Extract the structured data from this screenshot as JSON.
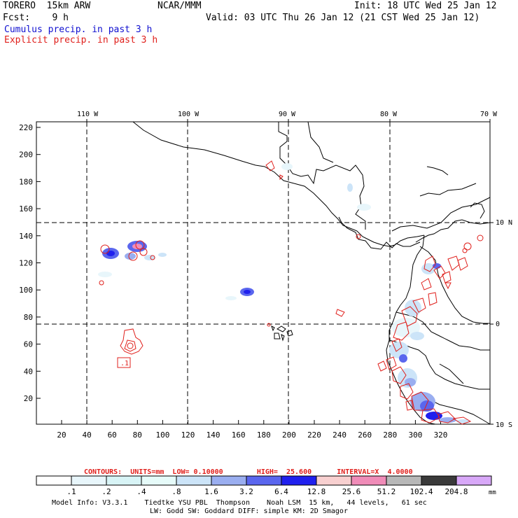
{
  "header": {
    "model": "TORERO  15km ARW",
    "org": "NCAR/MMM",
    "init": "Init: 18 UTC Wed 25 Jan 12",
    "fcst": "Fcst:    9 h",
    "valid": "Valid: 03 UTC Thu 26 Jan 12 (21 CST Wed 25 Jan 12)",
    "field1": "Cumulus precip. in past 3 h",
    "field2": "Explicit precip. in past 3 h"
  },
  "map": {
    "lon_labels": [
      "110 W",
      "100 W",
      "90 W",
      "80 W",
      "70 W"
    ],
    "lat_labels": [
      "10 N",
      "0",
      "10 S"
    ],
    "y_ticks": [
      "220",
      "200",
      "180",
      "160",
      "140",
      "120",
      "100",
      "80",
      "60",
      "40",
      "20"
    ],
    "x_ticks": [
      "20",
      "40",
      "60",
      "80",
      "100",
      "120",
      "140",
      "160",
      "180",
      "200",
      "220",
      "240",
      "260",
      "280",
      "300",
      "320"
    ],
    "box_label": ".1"
  },
  "contours": {
    "label": "CONTOURS:  UNITS=mm  LOW= 0.10000        HIGH=  25.600      INTERVAL=X  4.0000"
  },
  "colorbar": {
    "labels": [
      ".1",
      ".2",
      ".4",
      ".8",
      "1.6",
      "3.2",
      "6.4",
      "12.8",
      "25.6",
      "51.2",
      "102.4",
      "204.8"
    ],
    "units": "mm",
    "colors": [
      "#ffffff",
      "#e8f6fb",
      "#d8f4f6",
      "#e6fbf9",
      "#cce4f8",
      "#9aaef0",
      "#5a66ee",
      "#2020ee",
      "#f8d0d0",
      "#f08cb8",
      "#b8b8b8",
      "#3a3a3a",
      "#d8a8f8"
    ]
  },
  "footer": {
    "line1": "Model Info: V3.3.1    Tiedtke YSU PBL  Thompson    Noah LSM  15 km,   44 levels,   61 sec",
    "line2": "LW: Godd SW: Goddard DIFF: simple KM: 2D Smagor"
  }
}
